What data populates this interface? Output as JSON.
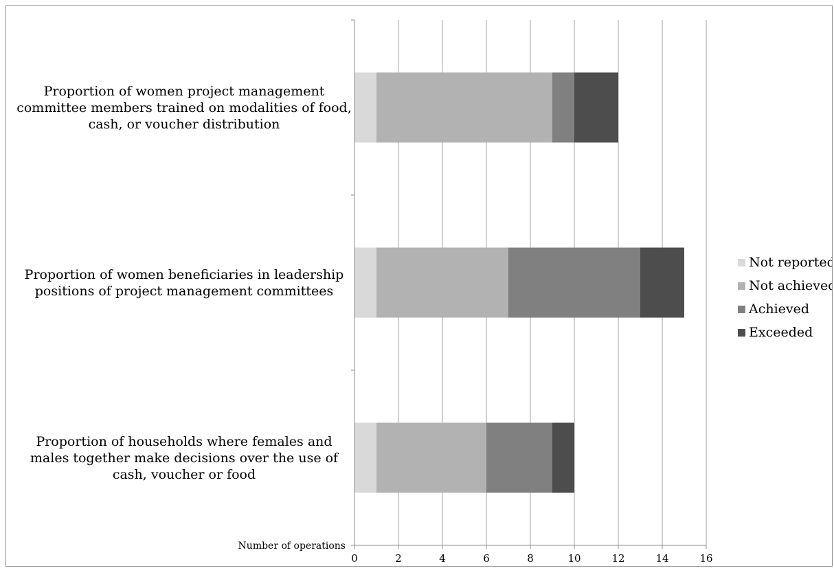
{
  "chart_data": {
    "type": "bar",
    "orientation": "horizontal",
    "stacked": true,
    "categories": [
      "Proportion of women project management committee members trained on modalities of food, cash, or voucher distribution",
      "Proportion of women beneficiaries in leadership positions of project management committees",
      "Proportion of households where females and males together make decisions over the use of cash, voucher or food"
    ],
    "series": [
      {
        "name": "Not reported",
        "color": "#d9d9d9",
        "values": [
          1,
          1,
          1
        ]
      },
      {
        "name": "Not achieved",
        "color": "#b2b2b2",
        "values": [
          8,
          6,
          5
        ]
      },
      {
        "name": "Achieved",
        "color": "#808080",
        "values": [
          1,
          6,
          3
        ]
      },
      {
        "name": "Exceeded",
        "color": "#4d4d4d",
        "values": [
          2,
          2,
          1
        ]
      }
    ],
    "xlabel": "Number of operations",
    "xlim": [
      0,
      16
    ],
    "xticks": [
      "0",
      "2",
      "4",
      "6",
      "8",
      "10",
      "12",
      "14",
      "16"
    ],
    "grid": "vertical",
    "legend_position": "right"
  }
}
